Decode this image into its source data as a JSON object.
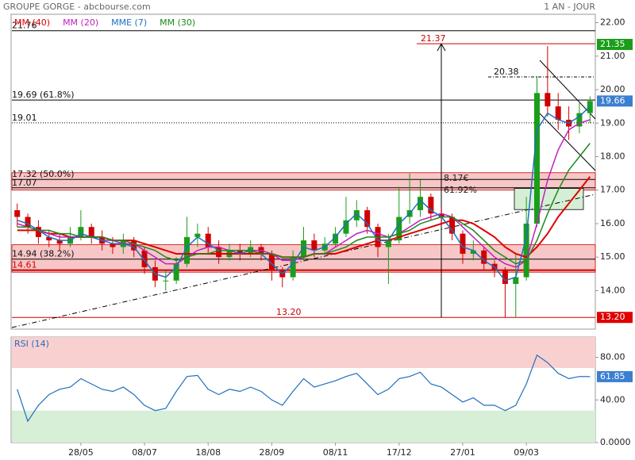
{
  "chart_data": {
    "type": "candlestick",
    "title": "GROUPE GORGE - abcbourse.com",
    "period": "1 AN - JOUR",
    "categories": [
      null,
      null,
      null,
      null,
      null,
      null,
      "28/05",
      null,
      null,
      null,
      null,
      null,
      "08/07",
      null,
      null,
      null,
      null,
      null,
      "18/08",
      null,
      null,
      null,
      null,
      null,
      "28/09",
      null,
      null,
      null,
      null,
      null,
      "08/11",
      null,
      null,
      null,
      null,
      null,
      "17/12",
      null,
      null,
      null,
      null,
      null,
      "27/01",
      null,
      null,
      null,
      null,
      null,
      "09/03",
      null,
      null,
      null,
      null,
      null,
      null
    ],
    "ohlc": [
      [
        16.4,
        16.6,
        15.9,
        16.2
      ],
      [
        16.2,
        16.3,
        15.7,
        15.9
      ],
      [
        15.9,
        16.1,
        15.4,
        15.6
      ],
      [
        15.6,
        15.8,
        15.3,
        15.5
      ],
      [
        15.5,
        15.7,
        15.2,
        15.4
      ],
      [
        15.4,
        15.9,
        15.3,
        15.6
      ],
      [
        15.6,
        16.4,
        15.5,
        15.9
      ],
      [
        15.9,
        16.0,
        15.4,
        15.6
      ],
      [
        15.6,
        15.8,
        15.2,
        15.4
      ],
      [
        15.4,
        15.6,
        15.1,
        15.3
      ],
      [
        15.3,
        15.7,
        15.1,
        15.5
      ],
      [
        15.5,
        15.6,
        15.0,
        15.2
      ],
      [
        15.2,
        15.3,
        14.5,
        14.7
      ],
      [
        14.7,
        14.9,
        14.1,
        14.3
      ],
      [
        14.3,
        14.6,
        14.0,
        14.3
      ],
      [
        14.3,
        15.0,
        14.2,
        14.8
      ],
      [
        14.8,
        16.2,
        14.7,
        15.6
      ],
      [
        15.6,
        16.0,
        15.3,
        15.7
      ],
      [
        15.7,
        15.9,
        15.1,
        15.3
      ],
      [
        15.3,
        15.5,
        14.8,
        15.0
      ],
      [
        15.0,
        15.4,
        14.9,
        15.2
      ],
      [
        15.2,
        15.4,
        14.9,
        15.1
      ],
      [
        15.1,
        15.5,
        15.0,
        15.3
      ],
      [
        15.3,
        15.4,
        14.9,
        15.1
      ],
      [
        15.1,
        15.2,
        14.3,
        14.6
      ],
      [
        14.6,
        14.7,
        14.1,
        14.4
      ],
      [
        14.4,
        15.2,
        14.3,
        15.0
      ],
      [
        15.0,
        15.9,
        14.9,
        15.5
      ],
      [
        15.5,
        15.7,
        15.0,
        15.2
      ],
      [
        15.2,
        15.6,
        15.1,
        15.4
      ],
      [
        15.4,
        15.9,
        15.3,
        15.7
      ],
      [
        15.7,
        16.8,
        15.6,
        16.1
      ],
      [
        16.1,
        16.7,
        15.9,
        16.4
      ],
      [
        16.4,
        16.5,
        15.7,
        15.9
      ],
      [
        15.9,
        16.0,
        15.0,
        15.3
      ],
      [
        15.3,
        15.7,
        14.2,
        15.5
      ],
      [
        15.5,
        17.1,
        15.4,
        16.2
      ],
      [
        16.2,
        17.5,
        16.0,
        16.4
      ],
      [
        16.4,
        17.3,
        16.2,
        16.8
      ],
      [
        16.8,
        16.9,
        16.1,
        16.3
      ],
      [
        16.3,
        16.5,
        16.0,
        16.2
      ],
      [
        16.2,
        16.3,
        15.5,
        15.7
      ],
      [
        15.7,
        15.8,
        14.8,
        15.1
      ],
      [
        15.1,
        15.5,
        14.9,
        15.2
      ],
      [
        15.2,
        15.3,
        14.6,
        14.8
      ],
      [
        14.8,
        14.9,
        14.4,
        14.6
      ],
      [
        14.6,
        14.7,
        13.2,
        14.2
      ],
      [
        14.2,
        15.1,
        13.2,
        14.4
      ],
      [
        14.4,
        16.8,
        14.3,
        16.0
      ],
      [
        16.0,
        20.4,
        15.9,
        19.9
      ],
      [
        19.9,
        21.3,
        19.2,
        19.5
      ],
      [
        19.5,
        19.9,
        18.8,
        19.1
      ],
      [
        19.1,
        19.5,
        18.5,
        18.9
      ],
      [
        18.9,
        19.6,
        18.7,
        19.3
      ],
      [
        19.3,
        19.8,
        19.0,
        19.66
      ]
    ],
    "last_close_label": "19.66",
    "series": [
      {
        "name": "MM (40)",
        "color": "#e00000",
        "values": [
          15.8,
          15.8,
          15.8,
          15.7,
          15.7,
          15.6,
          15.6,
          15.6,
          15.6,
          15.5,
          15.5,
          15.5,
          15.4,
          15.3,
          15.2,
          15.1,
          15.1,
          15.1,
          15.1,
          15.1,
          15.1,
          15.1,
          15.1,
          15.1,
          15.1,
          15.0,
          15.0,
          15.0,
          15.1,
          15.1,
          15.1,
          15.2,
          15.3,
          15.4,
          15.5,
          15.5,
          15.6,
          15.7,
          15.8,
          15.9,
          16.0,
          16.1,
          16.1,
          16.0,
          15.8,
          15.6,
          15.3,
          15.1,
          15.0,
          15.3,
          15.7,
          16.2,
          16.6,
          17.0,
          17.4
        ]
      },
      {
        "name": "MM (20)",
        "color": "#c020c0",
        "values": [
          16.0,
          15.9,
          15.8,
          15.7,
          15.6,
          15.6,
          15.6,
          15.6,
          15.5,
          15.5,
          15.4,
          15.4,
          15.2,
          15.0,
          14.8,
          14.8,
          15.0,
          15.2,
          15.3,
          15.3,
          15.2,
          15.2,
          15.2,
          15.2,
          15.1,
          14.9,
          14.9,
          15.0,
          15.1,
          15.1,
          15.3,
          15.5,
          15.7,
          15.8,
          15.7,
          15.6,
          15.7,
          15.9,
          16.1,
          16.2,
          16.3,
          16.2,
          15.9,
          15.6,
          15.3,
          15.0,
          14.8,
          14.7,
          14.9,
          16.0,
          17.3,
          18.2,
          18.8,
          19.0,
          19.1
        ]
      },
      {
        "name": "MME (7)",
        "color": "#1f6fc0",
        "values": [
          16.1,
          16.0,
          15.8,
          15.6,
          15.5,
          15.5,
          15.7,
          15.6,
          15.5,
          15.4,
          15.4,
          15.3,
          14.9,
          14.5,
          14.4,
          14.7,
          15.3,
          15.6,
          15.4,
          15.2,
          15.2,
          15.1,
          15.2,
          15.1,
          14.8,
          14.5,
          14.8,
          15.3,
          15.2,
          15.3,
          15.6,
          16.0,
          16.3,
          16.0,
          15.5,
          15.5,
          16.0,
          16.3,
          16.7,
          16.4,
          16.2,
          15.8,
          15.3,
          15.2,
          14.9,
          14.7,
          14.3,
          14.4,
          15.6,
          18.8,
          19.3,
          19.1,
          19.0,
          19.2,
          19.5
        ]
      },
      {
        "name": "MM (30)",
        "color": "#1a8a1a",
        "values": [
          15.9,
          15.9,
          15.8,
          15.8,
          15.7,
          15.7,
          15.6,
          15.6,
          15.6,
          15.5,
          15.5,
          15.4,
          15.3,
          15.2,
          15.0,
          14.9,
          15.0,
          15.1,
          15.1,
          15.2,
          15.2,
          15.2,
          15.2,
          15.1,
          15.1,
          15.0,
          15.0,
          15.0,
          15.1,
          15.1,
          15.2,
          15.3,
          15.5,
          15.6,
          15.6,
          15.6,
          15.7,
          15.8,
          16.0,
          16.1,
          16.2,
          16.2,
          16.0,
          15.8,
          15.5,
          15.2,
          15.0,
          14.8,
          14.9,
          15.5,
          16.3,
          17.0,
          17.6,
          18.0,
          18.4
        ]
      }
    ],
    "ylim": [
      12.85,
      22.25
    ],
    "yticks": [
      {
        "value": 22,
        "label": "22.00"
      },
      {
        "value": 21,
        "label": "21.00"
      },
      {
        "value": 20,
        "label": "20.00"
      },
      {
        "value": 19,
        "label": "19.00"
      },
      {
        "value": 18,
        "label": "18.00"
      },
      {
        "value": 17,
        "label": "17.00"
      },
      {
        "value": 16,
        "label": "16.00"
      },
      {
        "value": 15,
        "label": "15.00"
      },
      {
        "value": 14,
        "label": "14.00"
      }
    ],
    "levels": [
      {
        "value": 21.76,
        "label": "21.76",
        "color": "#000000",
        "style": "solid"
      },
      {
        "value": 19.69,
        "label": "19.69  (61.8%)",
        "color": "#000000",
        "style": "solid"
      },
      {
        "value": 19.01,
        "label": "19.01",
        "color": "#000000",
        "style": "dotted"
      },
      {
        "value": 17.32,
        "label": "17.32  (50.0%)",
        "color": "#000000",
        "style": "solid"
      },
      {
        "value": 17.07,
        "label": "17.07",
        "color": "#000000",
        "style": "solid"
      },
      {
        "value": 14.94,
        "label": "14.94  (38.2%)",
        "color": "#000000",
        "style": "solid"
      },
      {
        "value": 14.61,
        "label": "14.61",
        "color": "#cc0000",
        "style": "thick"
      },
      {
        "value": 13.2,
        "label": "13.20",
        "color": "#cc0000",
        "style": "solid"
      },
      {
        "value": 21.37,
        "label": "21.37",
        "color": "#cc0000",
        "style": "solid"
      },
      {
        "value": 20.38,
        "label": "20.38",
        "color": "#000000",
        "style": "dashed"
      }
    ],
    "zones": [
      {
        "from": 17.0,
        "to": 17.52,
        "color": "#f7c6c6"
      },
      {
        "from": 14.55,
        "to": 15.37,
        "color": "#f7c6c6"
      },
      {
        "from": 16.42,
        "to": 17.05,
        "color": "#d5efd5"
      }
    ],
    "markers": [
      {
        "value": 21.35,
        "label": "21.35",
        "color": "#1a9e1a"
      },
      {
        "value": 13.2,
        "label": "13.20",
        "color": "#e00000"
      }
    ],
    "arrow": {
      "from": 13.2,
      "to": 21.37,
      "labels": [
        "8.17€",
        "61.92%"
      ]
    },
    "rsi": {
      "name": "RSI (14)",
      "color": "#1f6fc0",
      "values": [
        50,
        20,
        35,
        45,
        50,
        52,
        60,
        55,
        50,
        48,
        52,
        45,
        35,
        30,
        32,
        48,
        62,
        63,
        50,
        45,
        50,
        48,
        52,
        48,
        40,
        35,
        48,
        60,
        52,
        55,
        58,
        62,
        65,
        55,
        45,
        50,
        60,
        62,
        66,
        55,
        52,
        45,
        38,
        42,
        35,
        35,
        30,
        35,
        55,
        82,
        75,
        65,
        60,
        62,
        61.85
      ],
      "last_label": "61.85",
      "ylim": [
        0,
        99
      ],
      "yticks": [
        {
          "value": 80,
          "label": "80.00"
        },
        {
          "value": 40,
          "label": "40.00"
        },
        {
          "value": 0,
          "label": "0.0000"
        }
      ],
      "bands": [
        {
          "from": 70,
          "to": 99,
          "color": "#f9d0d0"
        },
        {
          "from": 0,
          "to": 30,
          "color": "#d7eed7"
        }
      ]
    }
  }
}
